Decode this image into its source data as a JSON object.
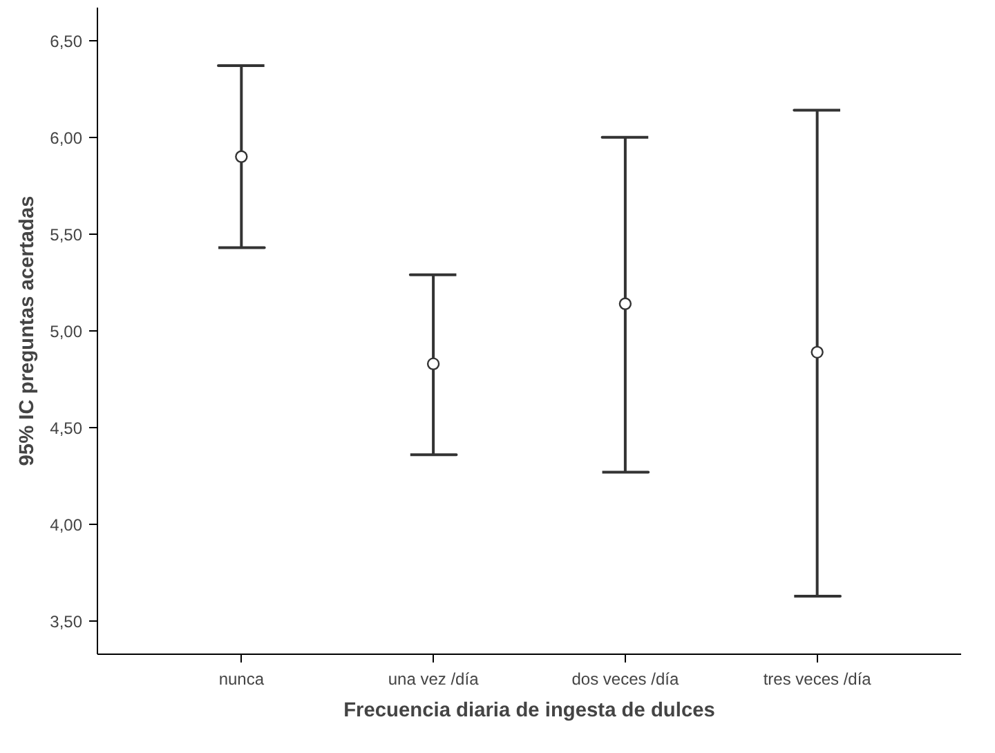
{
  "chart_data": {
    "type": "scatter",
    "xlabel": "Frecuencia diaria de ingesta de dulces",
    "ylabel": "95% IC preguntas acertadas",
    "categories": [
      "nunca",
      "una vez /día",
      "dos veces /día",
      "tres veces /día"
    ],
    "series": [
      {
        "color": "#333333",
        "values": [
          5.9,
          4.83,
          5.14,
          4.89
        ],
        "errors": [
          [
            5.43,
            6.37
          ],
          [
            4.36,
            5.29
          ],
          [
            4.27,
            6.0
          ],
          [
            3.63,
            6.14
          ]
        ]
      }
    ],
    "ylim": [
      3.33,
      6.67
    ],
    "yticks": [
      {
        "value": 3.5,
        "label": "3,50"
      },
      {
        "value": 4.0,
        "label": "4,00"
      },
      {
        "value": 4.5,
        "label": "4,50"
      },
      {
        "value": 5.0,
        "label": "5,00"
      },
      {
        "value": 5.5,
        "label": "5,50"
      },
      {
        "value": 6.0,
        "label": "6,00"
      },
      {
        "value": 6.5,
        "label": "6,50"
      }
    ],
    "marker": "circle",
    "grid": false
  }
}
